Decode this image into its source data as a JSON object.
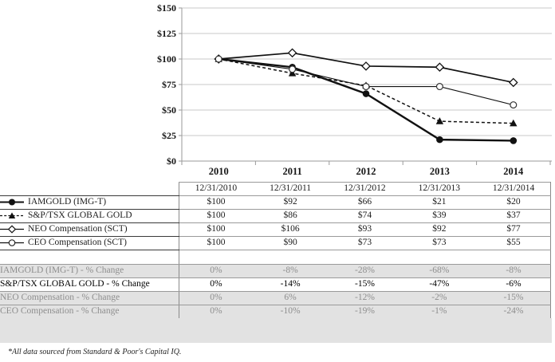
{
  "chart_data": {
    "type": "line",
    "title": "",
    "xlabel": "",
    "ylabel": "",
    "x": [
      "2010",
      "2011",
      "2012",
      "2013",
      "2014"
    ],
    "ylim": [
      0,
      150
    ],
    "ytick_step": 25,
    "ytick_labels": [
      "$0",
      "$25",
      "$50",
      "$75",
      "$100",
      "$125",
      "$150"
    ],
    "grid": true,
    "legend_position": "table-rows-left",
    "series": [
      {
        "name": "IAMGOLD (IMG-T)",
        "marker": "filled-circle",
        "line": "solid",
        "values": [
          100,
          92,
          66,
          21,
          20
        ]
      },
      {
        "name": "S&P/TSX GLOBAL GOLD",
        "marker": "filled-triangle",
        "line": "dashed",
        "values": [
          100,
          86,
          74,
          39,
          37
        ]
      },
      {
        "name": "NEO Compensation (SCT)",
        "marker": "open-diamond",
        "line": "solid",
        "values": [
          100,
          106,
          93,
          92,
          77
        ]
      },
      {
        "name": "CEO Compensation (SCT)",
        "marker": "open-circle",
        "line": "solid",
        "values": [
          100,
          90,
          73,
          73,
          55
        ]
      }
    ]
  },
  "table": {
    "column_headers": [
      "12/31/2010",
      "12/31/2011",
      "12/31/2012",
      "12/31/2013",
      "12/31/2014"
    ],
    "value_rows": [
      {
        "label": "IAMGOLD (IMG-T)",
        "marker": "filled-circle",
        "values": [
          "$100",
          "$92",
          "$66",
          "$21",
          "$20"
        ]
      },
      {
        "label": "S&P/TSX GLOBAL GOLD",
        "marker": "filled-triangle",
        "values": [
          "$100",
          "$86",
          "$74",
          "$39",
          "$37"
        ]
      },
      {
        "label": "NEO Compensation (SCT)",
        "marker": "open-diamond",
        "values": [
          "$100",
          "$106",
          "$93",
          "$92",
          "$77"
        ]
      },
      {
        "label": "CEO Compensation (SCT)",
        "marker": "open-circle",
        "values": [
          "$100",
          "$90",
          "$73",
          "$73",
          "$55"
        ]
      }
    ],
    "percent_rows": [
      {
        "label": "IAMGOLD (IMG-T) - % Change",
        "style": "gray",
        "values": [
          "0%",
          "-8%",
          "-28%",
          "-68%",
          "-8%"
        ]
      },
      {
        "label": "S&P/TSX GLOBAL GOLD - % Change",
        "style": "highlight",
        "values": [
          "0%",
          "-14%",
          "-15%",
          "-47%",
          "-6%"
        ]
      },
      {
        "label": "NEO Compensation - % Change",
        "style": "gray",
        "values": [
          "0%",
          "6%",
          "-12%",
          "-2%",
          "-15%"
        ]
      },
      {
        "label": "CEO Compensation - % Change",
        "style": "gray",
        "values": [
          "0%",
          "-10%",
          "-19%",
          "-1%",
          "-24%"
        ]
      }
    ]
  },
  "footnote": "*All data sourced from Standard & Poor's Capital IQ.",
  "colors": {
    "series_line": "#111111",
    "grid": "#c9c9c9",
    "axis": "#9a9a9a",
    "gray_row_bg": "#e2e2e2",
    "gray_row_text": "#8e8e8e",
    "band_bg": "#e2e2e2"
  }
}
